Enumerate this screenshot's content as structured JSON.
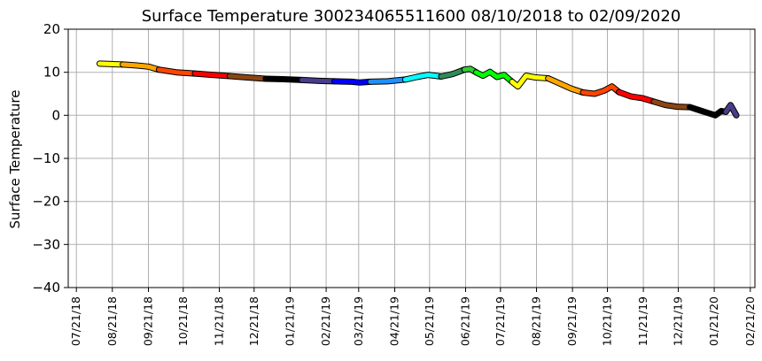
{
  "chart_data": {
    "type": "line",
    "title": "Surface Temperature 300234065511600  08/10/2018 to 02/09/2020",
    "xlabel": "",
    "ylabel": "Surface Temperature",
    "ylim": [
      -40,
      20
    ],
    "yticks": [
      -40,
      -30,
      -20,
      -10,
      0,
      10,
      20
    ],
    "xlim": [
      "2018-07-14",
      "2020-02-25"
    ],
    "xticks": [
      "2018-07-21",
      "2018-08-21",
      "2018-09-21",
      "2018-10-21",
      "2018-11-21",
      "2018-12-21",
      "2019-01-21",
      "2019-02-21",
      "2019-03-21",
      "2019-04-21",
      "2019-05-21",
      "2019-06-21",
      "2019-07-21",
      "2019-08-21",
      "2019-09-21",
      "2019-10-21",
      "2019-11-21",
      "2019-12-21",
      "2020-01-21",
      "2020-02-21"
    ],
    "xtick_labels": [
      "07/21/18",
      "08/21/18",
      "09/21/18",
      "10/21/18",
      "11/21/18",
      "12/21/18",
      "01/21/19",
      "02/21/19",
      "03/21/19",
      "04/21/19",
      "05/21/19",
      "06/21/19",
      "07/21/19",
      "08/21/19",
      "09/21/19",
      "10/21/19",
      "11/21/19",
      "12/21/19",
      "01/21/20",
      "02/21/20"
    ],
    "grid": true,
    "legend": "none",
    "series": [
      {
        "color": "#ffff00",
        "x": [
          "2018-08-10",
          "2018-08-20",
          "2018-08-30"
        ],
        "y": [
          12.0,
          11.9,
          11.8
        ]
      },
      {
        "color": "#ffa500",
        "x": [
          "2018-08-30",
          "2018-09-10",
          "2018-09-21",
          "2018-09-30"
        ],
        "y": [
          11.8,
          11.6,
          11.3,
          10.6
        ]
      },
      {
        "color": "#ff4500",
        "x": [
          "2018-09-30",
          "2018-10-15",
          "2018-10-31"
        ],
        "y": [
          10.6,
          10.0,
          9.7
        ]
      },
      {
        "color": "#ff0000",
        "x": [
          "2018-10-31",
          "2018-11-15",
          "2018-11-30"
        ],
        "y": [
          9.7,
          9.4,
          9.1
        ]
      },
      {
        "color": "#8b4513",
        "x": [
          "2018-11-30",
          "2018-12-15",
          "2018-12-31"
        ],
        "y": [
          9.1,
          8.8,
          8.5
        ]
      },
      {
        "color": "#000000",
        "x": [
          "2018-12-31",
          "2019-01-15",
          "2019-01-31"
        ],
        "y": [
          8.5,
          8.4,
          8.2
        ]
      },
      {
        "color": "#483d8b",
        "x": [
          "2019-01-31",
          "2019-02-15",
          "2019-02-28"
        ],
        "y": [
          8.2,
          8.0,
          7.9
        ]
      },
      {
        "color": "#0000ff",
        "x": [
          "2019-02-28",
          "2019-03-15",
          "2019-03-22",
          "2019-03-31"
        ],
        "y": [
          7.9,
          7.8,
          7.6,
          7.8
        ]
      },
      {
        "color": "#1e90ff",
        "x": [
          "2019-03-31",
          "2019-04-15",
          "2019-04-30"
        ],
        "y": [
          7.8,
          7.9,
          8.3
        ]
      },
      {
        "color": "#00ffff",
        "x": [
          "2019-04-30",
          "2019-05-10",
          "2019-05-20",
          "2019-05-31"
        ],
        "y": [
          8.3,
          8.9,
          9.4,
          9.0
        ]
      },
      {
        "color": "#2e8b57",
        "x": [
          "2019-05-31",
          "2019-06-10",
          "2019-06-20"
        ],
        "y": [
          9.0,
          9.6,
          10.6
        ]
      },
      {
        "color": "#32cd32",
        "x": [
          "2019-06-20",
          "2019-06-25",
          "2019-06-30"
        ],
        "y": [
          10.6,
          10.8,
          10.0
        ]
      },
      {
        "color": "#00ff00",
        "x": [
          "2019-06-30",
          "2019-07-06",
          "2019-07-12",
          "2019-07-18",
          "2019-07-24",
          "2019-07-31"
        ],
        "y": [
          10.0,
          9.2,
          10.1,
          8.9,
          9.4,
          7.8
        ]
      },
      {
        "color": "#ffff00",
        "x": [
          "2019-07-31",
          "2019-08-05",
          "2019-08-12",
          "2019-08-20",
          "2019-08-31"
        ],
        "y": [
          7.8,
          6.7,
          9.2,
          8.8,
          8.6
        ]
      },
      {
        "color": "#ffa500",
        "x": [
          "2019-08-31",
          "2019-09-10",
          "2019-09-20",
          "2019-09-30"
        ],
        "y": [
          8.6,
          7.4,
          6.2,
          5.3
        ]
      },
      {
        "color": "#ff4500",
        "x": [
          "2019-09-30",
          "2019-10-10",
          "2019-10-18",
          "2019-10-25",
          "2019-10-31"
        ],
        "y": [
          5.3,
          5.0,
          5.7,
          6.7,
          5.4
        ]
      },
      {
        "color": "#ff0000",
        "x": [
          "2019-10-31",
          "2019-11-10",
          "2019-11-20",
          "2019-11-30"
        ],
        "y": [
          5.4,
          4.4,
          4.0,
          3.2
        ]
      },
      {
        "color": "#8b4513",
        "x": [
          "2019-11-30",
          "2019-12-10",
          "2019-12-20",
          "2019-12-31"
        ],
        "y": [
          3.2,
          2.4,
          2.0,
          1.9
        ]
      },
      {
        "color": "#000000",
        "x": [
          "2019-12-31",
          "2020-01-08",
          "2020-01-15",
          "2020-01-22",
          "2020-01-27",
          "2020-01-31"
        ],
        "y": [
          1.9,
          1.2,
          0.6,
          0.0,
          1.0,
          0.8
        ]
      },
      {
        "color": "#483d8b",
        "x": [
          "2020-01-31",
          "2020-02-04",
          "2020-02-09"
        ],
        "y": [
          0.8,
          2.4,
          0.0
        ]
      }
    ]
  }
}
